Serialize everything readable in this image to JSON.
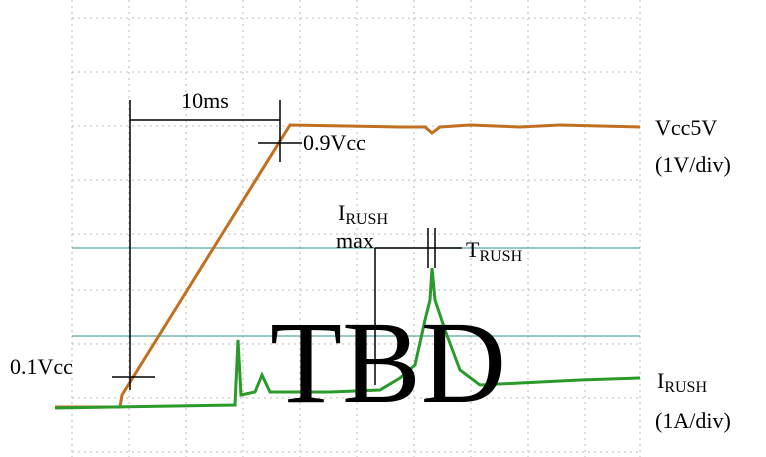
{
  "annotations": {
    "interval": "10ms",
    "upper_level": "0.9Vcc",
    "lower_level": "0.1Vcc",
    "peak": {
      "main": "I",
      "sub": "RUSH",
      "note": "max"
    },
    "duration": {
      "main": "T",
      "sub": "RUSH"
    }
  },
  "channels": [
    {
      "name": "Vcc5V",
      "scale": "(1V/div)"
    },
    {
      "name": {
        "main": "I",
        "sub": "RUSH"
      },
      "scale": "(1A/div)"
    }
  ],
  "watermark": "TBD"
}
